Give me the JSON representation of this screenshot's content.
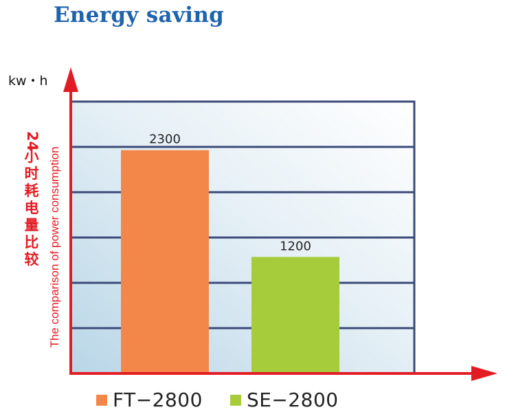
{
  "title": "Energy saving",
  "chart_data": {
    "type": "bar",
    "categories": [
      "FT−2800",
      "SE−2800"
    ],
    "values": [
      2300,
      1200
    ],
    "colors": [
      "#f3874a",
      "#a6cc3c"
    ],
    "unit": "kw・h",
    "ylabel_en": "The comparison of power consumption",
    "ylabel_cn": "24小时耗电量比较",
    "ylim": [
      0,
      2800
    ],
    "gridlines": 6,
    "grid": true,
    "legend_position": "bottom",
    "legend": [
      "FT−2800",
      "SE−2800"
    ],
    "data_labels": [
      "2300",
      "1200"
    ]
  },
  "colors": {
    "title": "#1f63ad",
    "axis": "#e31b23",
    "grid": "#3b4a78"
  }
}
